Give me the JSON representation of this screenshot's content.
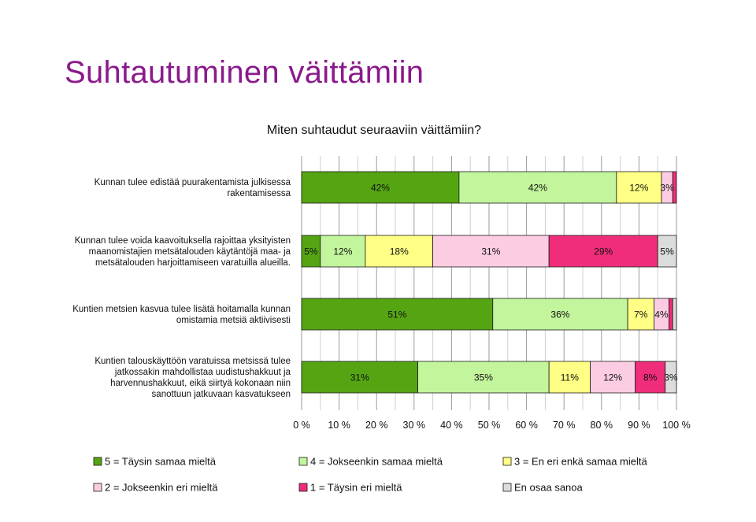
{
  "slide": {
    "title": "Suhtautuminen väittämiin"
  },
  "chart_data": {
    "type": "bar",
    "orientation": "horizontal",
    "stacked": "percent",
    "title": "Miten suhtaudut seuraaviin väittämiin?",
    "xlim": [
      0,
      100
    ],
    "x_ticks": [
      "0 %",
      "10 %",
      "20 %",
      "30 %",
      "40 %",
      "50 %",
      "60 %",
      "70 %",
      "80 %",
      "90 %",
      "100 %"
    ],
    "grid": true,
    "legend_position": "bottom",
    "categories": [
      [
        "Kunnan tulee edistää puurakentamista julkisessa",
        "rakentamisessa"
      ],
      [
        "Kunnan tulee voida kaavoituksella rajoittaa yksityisten",
        "maanomistajien metsätalouden käytäntöjä maa- ja",
        "metsätalouden harjoittamiseen varatuilla alueilla."
      ],
      [
        "Kuntien metsien kasvua tulee lisätä hoitamalla kunnan",
        "omistamia metsiä aktiivisesti"
      ],
      [
        "Kuntien talouskäyttöön varatuissa metsissä tulee",
        "jatkossakin mahdollistaa uudistushakkuut ja",
        "harvennushakkuut, eikä siirtyä kokonaan niin",
        "sanottuun jatkuvaan kasvatukseen"
      ]
    ],
    "series": [
      {
        "name": "5 = Täysin samaa mieltä",
        "color": "#55a513",
        "values": [
          42,
          5,
          51,
          31
        ],
        "labels": [
          "42%",
          "5%",
          "51%",
          "31%"
        ]
      },
      {
        "name": "4 = Jokseenkin samaa mieltä",
        "color": "#c2f59c",
        "values": [
          42,
          12,
          36,
          35
        ],
        "labels": [
          "42%",
          "12%",
          "36%",
          "35%"
        ]
      },
      {
        "name": "3 = En eri enkä samaa mieltä",
        "color": "#ffff85",
        "values": [
          12,
          18,
          7,
          11
        ],
        "labels": [
          "12%",
          "18%",
          "7%",
          "11%"
        ]
      },
      {
        "name": "2 = Jokseenkin eri mieltä",
        "color": "#fccde2",
        "values": [
          3,
          31,
          4,
          12
        ],
        "labels": [
          "3%",
          "31%",
          "4%",
          "12%"
        ]
      },
      {
        "name": "1 = Täysin eri mieltä",
        "color": "#ef2d7a",
        "values": [
          1,
          29,
          1,
          8
        ],
        "labels": [
          "",
          "29%",
          "",
          "8%"
        ]
      },
      {
        "name": "En osaa sanoa",
        "color": "#dcdcdc",
        "values": [
          0,
          5,
          1,
          3
        ],
        "labels": [
          "",
          "5%",
          "",
          "3%"
        ]
      }
    ]
  }
}
